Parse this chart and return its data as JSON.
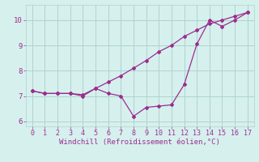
{
  "x": [
    0,
    1,
    2,
    3,
    4,
    5,
    6,
    7,
    8,
    9,
    10,
    11,
    12,
    13,
    14,
    15,
    16,
    17
  ],
  "line1": [
    7.2,
    7.1,
    7.1,
    7.1,
    7.05,
    7.3,
    7.55,
    7.8,
    8.1,
    8.4,
    8.75,
    9.0,
    9.35,
    9.6,
    9.85,
    10.0,
    10.15,
    10.3
  ],
  "line2": [
    7.2,
    7.1,
    7.1,
    7.1,
    7.0,
    7.3,
    7.1,
    7.0,
    6.2,
    6.55,
    6.6,
    6.65,
    7.45,
    9.05,
    10.0,
    9.75,
    10.0,
    10.3
  ],
  "line_color": "#9b2d8e",
  "bg_color": "#d6f0ee",
  "grid_color": "#aed4cc",
  "xlabel": "Windchill (Refroidissement éolien,°C)",
  "xlabel_color": "#9b2d8e",
  "ylim": [
    5.8,
    10.6
  ],
  "xlim": [
    -0.5,
    17.5
  ],
  "yticks": [
    6,
    7,
    8,
    9,
    10
  ],
  "xticks": [
    0,
    1,
    2,
    3,
    4,
    5,
    6,
    7,
    8,
    9,
    10,
    11,
    12,
    13,
    14,
    15,
    16,
    17
  ]
}
